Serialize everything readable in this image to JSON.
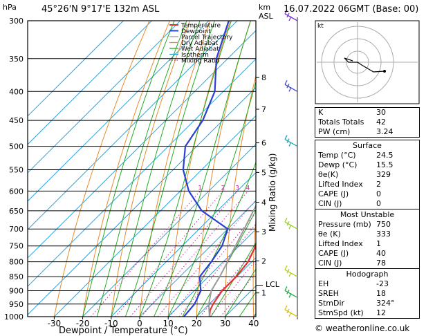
{
  "header": {
    "location": "45°26'N  9°17'E  132m  ASL",
    "datetime": "16.07.2022  06GMT  (Base: 00)",
    "hpa_label": "hPa",
    "km_label": "km",
    "asl_label": "ASL"
  },
  "legend": [
    "Temperature",
    "Dewpoint",
    "Parcel Trajectory",
    "Dry Adiabat",
    "Wet Adiabat",
    "Isotherm",
    "Mixing Ratio"
  ],
  "colors": {
    "temperature": "#e03030",
    "dewpoint": "#2a3fd4",
    "parcel": "#9a9a9a",
    "dry_adiabat": "#e88a2a",
    "wet_adiabat": "#22aa22",
    "isotherm": "#28a4dc",
    "mixing_ratio": "#d020a0",
    "grid": "#000000"
  },
  "axis_labels": {
    "x": "Dewpoint / Temperature (°C)",
    "y_right": "Mixing Ratio (g/kg)",
    "lcl": "LCL"
  },
  "chart_data": {
    "type": "line",
    "pressure_levels": [
      300,
      350,
      400,
      450,
      500,
      550,
      600,
      650,
      700,
      750,
      800,
      850,
      900,
      950,
      1000
    ],
    "x_ticks": [
      -30,
      -20,
      -10,
      0,
      10,
      20,
      30,
      40
    ],
    "xlim": [
      -35,
      40
    ],
    "ylim": [
      1000,
      300
    ],
    "altitude_km_ticks": [
      {
        "km": 1,
        "p": 908
      },
      {
        "km": 2,
        "p": 797
      },
      {
        "km": 3,
        "p": 708
      },
      {
        "km": 4,
        "p": 628
      },
      {
        "km": 5,
        "p": 556
      },
      {
        "km": 6,
        "p": 493
      },
      {
        "km": 7,
        "p": 430
      },
      {
        "km": 8,
        "p": 378
      }
    ],
    "lcl_pressure": 880,
    "mixing_ratio_labels": [
      1,
      2,
      3,
      4,
      6,
      8,
      10,
      16,
      20,
      25
    ],
    "series": [
      {
        "name": "Temperature",
        "points": [
          {
            "p": 1000,
            "t": 24.5
          },
          {
            "p": 975,
            "t": 22.5
          },
          {
            "p": 950,
            "t": 21.3
          },
          {
            "p": 900,
            "t": 19.8
          },
          {
            "p": 850,
            "t": 19.8
          },
          {
            "p": 800,
            "t": 18.7
          },
          {
            "p": 750,
            "t": 15.8
          },
          {
            "p": 700,
            "t": 11.0
          },
          {
            "p": 650,
            "t": 7.2
          },
          {
            "p": 600,
            "t": 3.2
          },
          {
            "p": 550,
            "t": -1.0
          },
          {
            "p": 500,
            "t": -6.2
          },
          {
            "p": 450,
            "t": -12.3
          },
          {
            "p": 400,
            "t": -19.8
          },
          {
            "p": 350,
            "t": -28.5
          },
          {
            "p": 300,
            "t": -38.0
          }
        ]
      },
      {
        "name": "Dewpoint",
        "points": [
          {
            "p": 1000,
            "t": 15.5
          },
          {
            "p": 950,
            "t": 14.8
          },
          {
            "p": 900,
            "t": 12.3
          },
          {
            "p": 850,
            "t": 7.0
          },
          {
            "p": 800,
            "t": 5.8
          },
          {
            "p": 750,
            "t": 4.0
          },
          {
            "p": 700,
            "t": 0.0
          },
          {
            "p": 650,
            "t": -15.5
          },
          {
            "p": 600,
            "t": -27.0
          },
          {
            "p": 550,
            "t": -36.5
          },
          {
            "p": 500,
            "t": -44.0
          },
          {
            "p": 450,
            "t": -47.0
          },
          {
            "p": 400,
            "t": -53.0
          },
          {
            "p": 350,
            "t": -64.0
          },
          {
            "p": 300,
            "t": -73.0
          }
        ]
      },
      {
        "name": "Parcel Trajectory",
        "points": [
          {
            "p": 1000,
            "t": 24.5
          },
          {
            "p": 950,
            "t": 19.8
          },
          {
            "p": 900,
            "t": 16.0
          },
          {
            "p": 850,
            "t": 14.0
          },
          {
            "p": 800,
            "t": 11.5
          },
          {
            "p": 750,
            "t": 8.7
          },
          {
            "p": 700,
            "t": 5.8
          },
          {
            "p": 650,
            "t": 2.6
          },
          {
            "p": 600,
            "t": -0.9
          },
          {
            "p": 550,
            "t": -4.8
          },
          {
            "p": 500,
            "t": -9.4
          },
          {
            "p": 450,
            "t": -14.8
          },
          {
            "p": 400,
            "t": -21.0
          },
          {
            "p": 350,
            "t": -28.6
          },
          {
            "p": 300,
            "t": -37.8
          }
        ]
      }
    ]
  },
  "hodograph": {
    "label": "kt"
  },
  "indices": [
    {
      "label": "K",
      "value": "30"
    },
    {
      "label": "Totals Totals",
      "value": "42"
    },
    {
      "label": "PW (cm)",
      "value": "3.24"
    }
  ],
  "surface": {
    "title": "Surface",
    "rows": [
      {
        "label": "Temp (°C)",
        "value": "24.5"
      },
      {
        "label": "Dewp (°C)",
        "value": "15.5"
      },
      {
        "label": "θe(K)",
        "value": "329"
      },
      {
        "label": "Lifted Index",
        "value": "2"
      },
      {
        "label": "CAPE (J)",
        "value": "0"
      },
      {
        "label": "CIN (J)",
        "value": "0"
      }
    ]
  },
  "most_unstable": {
    "title": "Most Unstable",
    "rows": [
      {
        "label": "Pressure (mb)",
        "value": "750"
      },
      {
        "label": "θe (K)",
        "value": "333"
      },
      {
        "label": "Lifted Index",
        "value": "1"
      },
      {
        "label": "CAPE (J)",
        "value": "40"
      },
      {
        "label": "CIN (J)",
        "value": "78"
      }
    ]
  },
  "hodograph_table": {
    "title": "Hodograph",
    "rows": [
      {
        "label": "EH",
        "value": "-23"
      },
      {
        "label": "SREH",
        "value": "18"
      },
      {
        "label": "StmDir",
        "value": "324°"
      },
      {
        "label": "StmSpd (kt)",
        "value": "12"
      }
    ]
  },
  "footer": "© weatheronline.co.uk"
}
